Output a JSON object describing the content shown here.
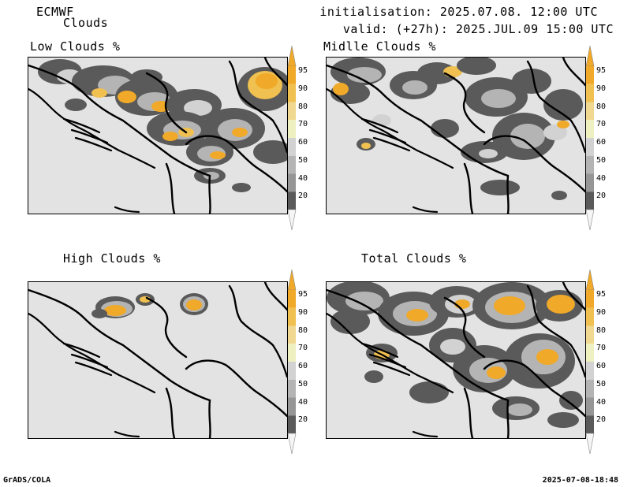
{
  "header": {
    "model": "ECMWF",
    "product": "Clouds",
    "initialisation": "initialisation: 2025.07.08. 12:00 UTC",
    "valid": "valid: (+27h): 2025.JUL.09 15:00 UTC"
  },
  "panels": [
    {
      "id": "low",
      "title": "Low Clouds %"
    },
    {
      "id": "middle",
      "title": "Midlle Clouds %"
    },
    {
      "id": "high",
      "title": "High Clouds %"
    },
    {
      "id": "total",
      "title": "Total Clouds %"
    }
  ],
  "colorbar": {
    "labels": [
      "95",
      "90",
      "80",
      "70",
      "60",
      "50",
      "40",
      "20"
    ],
    "colors": [
      "#f0a928",
      "#f0c050",
      "#f0d890",
      "#eef0c0",
      "#d2d2d2",
      "#b4b4b4",
      "#969696",
      "#5a5a5a"
    ],
    "upper_arrow_color": "#f0a928",
    "lower_arrow_color": "#f5f5f5"
  },
  "colors": {
    "background": "#e3e3e3",
    "dark": "#5a5a5a",
    "mid": "#969696",
    "light": "#b4b4b4",
    "pale": "#d2d2d2",
    "yellow_light": "#f0d890",
    "yellow": "#f0c050",
    "orange": "#f0a928"
  },
  "footer": {
    "left": "GrADS/COLA",
    "right": "2025-07-08-18:48"
  }
}
